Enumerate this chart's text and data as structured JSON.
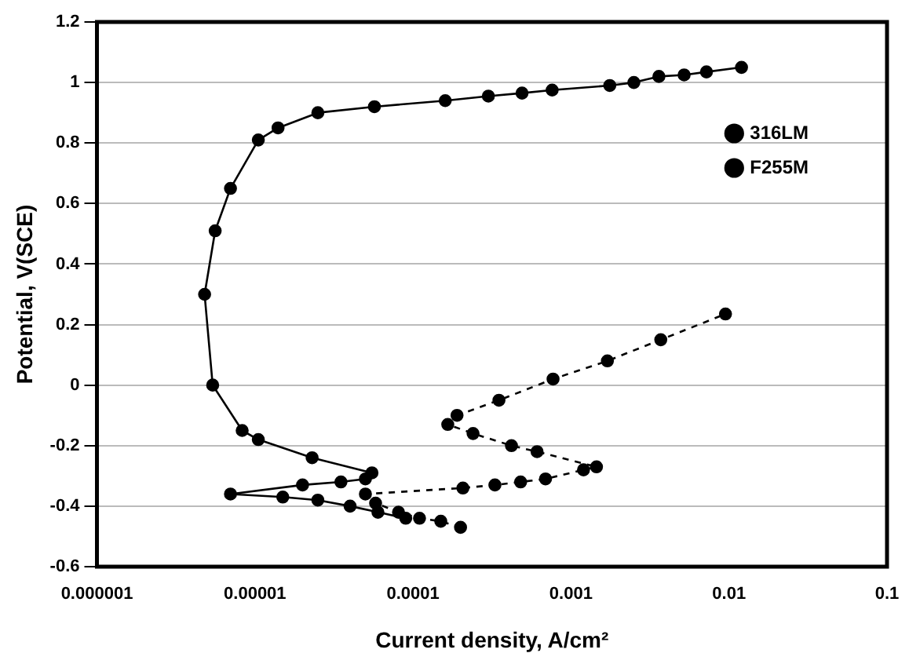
{
  "chart_data": {
    "type": "line",
    "xlabel": "Current density, A/cm²",
    "ylabel": "Potential, V(SCE)",
    "log": "x",
    "xlim": [
      1e-06,
      0.1
    ],
    "xticks": [
      {
        "value": 1e-06,
        "label": "0.000001"
      },
      {
        "value": 1e-05,
        "label": "0.00001"
      },
      {
        "value": 0.0001,
        "label": "0.0001"
      },
      {
        "value": 0.001,
        "label": "0.001"
      },
      {
        "value": 0.01,
        "label": "0.01"
      },
      {
        "value": 0.1,
        "label": "0.1"
      }
    ],
    "ylim": [
      -0.6,
      1.2
    ],
    "yticks": [
      -0.6,
      -0.4,
      -0.2,
      0,
      0.2,
      0.4,
      0.6,
      0.8,
      1,
      1.2
    ],
    "grid": "y",
    "legend": "top right",
    "marker": "circle",
    "series": [
      {
        "name": "316LM",
        "color": "#000000",
        "line_style": "dashed",
        "x": [
          0.0002,
          0.00015,
          0.00011,
          8.1e-05,
          5.8e-05,
          5e-05,
          0.000207,
          0.00033,
          0.00048,
          0.00069,
          0.0012,
          0.00145,
          0.00061,
          0.00042,
          0.00024,
          0.000166,
          0.00019,
          0.00035,
          0.00077,
          0.0017,
          0.0037,
          0.0095
        ],
        "values": [
          -0.47,
          -0.45,
          -0.44,
          -0.42,
          -0.39,
          -0.36,
          -0.34,
          -0.33,
          -0.32,
          -0.31,
          -0.28,
          -0.27,
          -0.22,
          -0.2,
          -0.16,
          -0.13,
          -0.1,
          -0.05,
          0.02,
          0.08,
          0.15,
          0.235
        ]
      },
      {
        "name": "F255M",
        "color": "#000000",
        "line_style": "solid",
        "x": [
          9e-05,
          6e-05,
          4e-05,
          2.5e-05,
          1.5e-05,
          7e-06,
          2e-05,
          3.5e-05,
          5e-05,
          5.5e-05,
          2.3e-05,
          1.05e-05,
          8.3e-06,
          5.4e-06,
          4.8e-06,
          5.6e-06,
          7e-06,
          1.05e-05,
          1.4e-05,
          2.5e-05,
          5.7e-05,
          0.00016,
          0.0003,
          0.00049,
          0.00076,
          0.00176,
          0.0025,
          0.0036,
          0.0052,
          0.0072,
          0.012
        ],
        "values": [
          -0.44,
          -0.42,
          -0.4,
          -0.38,
          -0.37,
          -0.36,
          -0.33,
          -0.32,
          -0.31,
          -0.29,
          -0.24,
          -0.18,
          -0.15,
          0,
          0.3,
          0.51,
          0.65,
          0.81,
          0.85,
          0.9,
          0.92,
          0.94,
          0.955,
          0.965,
          0.975,
          0.99,
          1,
          1.02,
          1.025,
          1.035,
          1.05
        ]
      }
    ]
  }
}
